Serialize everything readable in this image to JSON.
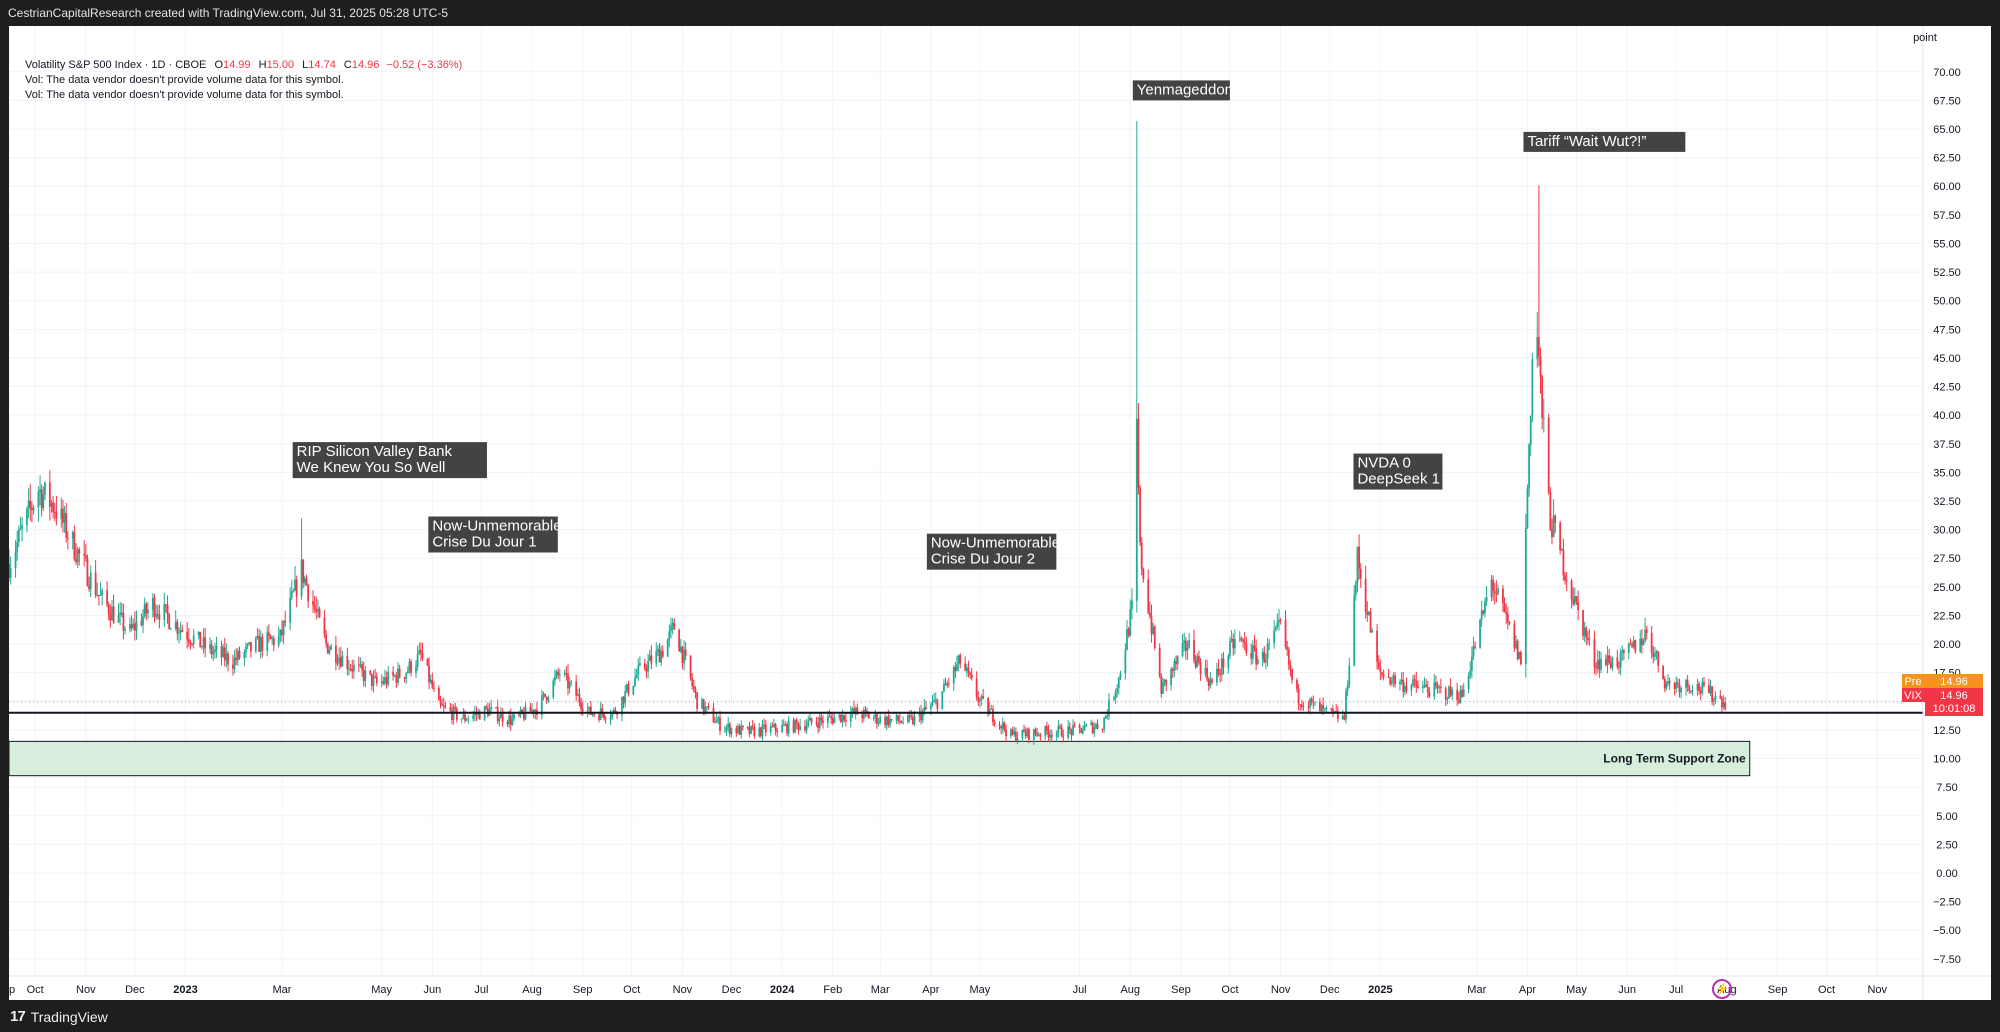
{
  "header": {
    "caption": "CestrianCapitalResearch created with TradingView.com, Jul 31, 2025 05:28 UTC-5"
  },
  "legend": {
    "symbol": "Volatility S&P 500 Index · 1D · CBOE",
    "open_label": "O",
    "open": "14.99",
    "high_label": "H",
    "high": "15.00",
    "low_label": "L",
    "low": "14.74",
    "close_label": "C",
    "close": "14.96",
    "change": "−0.52 (−3.36%)",
    "vol_note_1": "Vol: The data vendor doesn't provide volume data for this symbol.",
    "vol_note_2": "Vol: The data vendor doesn't provide volume data for this symbol."
  },
  "footer": {
    "brand": "TradingView",
    "logo_text": "17"
  },
  "price_scale": {
    "unit": "point",
    "pre_label": "Pre",
    "pre_value": "14.96",
    "last_label": "VIX",
    "last_value": "14.96",
    "countdown": "10:01:08"
  },
  "colors": {
    "up": "#22ab94",
    "down": "#f23645",
    "annotation_bg": "#434343",
    "zone_fill": "#d8eedd",
    "pre": "#f7931a"
  },
  "chart_data": {
    "type": "candlestick",
    "title": "Volatility S&P 500 Index · 1D · CBOE",
    "ylim": [
      -9,
      74
    ],
    "y_ticks": [
      70,
      67.5,
      65,
      62.5,
      60,
      57.5,
      55,
      52.5,
      50,
      47.5,
      45,
      42.5,
      40,
      37.5,
      35,
      32.5,
      30,
      27.5,
      25,
      22.5,
      20,
      17.5,
      15,
      12.5,
      10,
      7.5,
      5,
      2.5,
      0,
      -2.5,
      -5,
      -7.5
    ],
    "x_ticks": [
      {
        "label": "ep",
        "date": "2022-09-15"
      },
      {
        "label": "Oct",
        "date": "2022-10-01"
      },
      {
        "label": "Nov",
        "date": "2022-11-01"
      },
      {
        "label": "Dec",
        "date": "2022-12-01"
      },
      {
        "label": "2023",
        "date": "2023-01-01"
      },
      {
        "label": "Mar",
        "date": "2023-03-01"
      },
      {
        "label": "May",
        "date": "2023-05-01"
      },
      {
        "label": "Jun",
        "date": "2023-06-01"
      },
      {
        "label": "Jul",
        "date": "2023-07-01"
      },
      {
        "label": "Aug",
        "date": "2023-08-01"
      },
      {
        "label": "Sep",
        "date": "2023-09-01"
      },
      {
        "label": "Oct",
        "date": "2023-10-01"
      },
      {
        "label": "Nov",
        "date": "2023-11-01"
      },
      {
        "label": "Dec",
        "date": "2023-12-01"
      },
      {
        "label": "2024",
        "date": "2024-01-01"
      },
      {
        "label": "Feb",
        "date": "2024-02-01"
      },
      {
        "label": "Mar",
        "date": "2024-03-01"
      },
      {
        "label": "Apr",
        "date": "2024-04-01"
      },
      {
        "label": "May",
        "date": "2024-05-01"
      },
      {
        "label": "Jul",
        "date": "2024-07-01"
      },
      {
        "label": "Aug",
        "date": "2024-08-01"
      },
      {
        "label": "Sep",
        "date": "2024-09-01"
      },
      {
        "label": "Oct",
        "date": "2024-10-01"
      },
      {
        "label": "Nov",
        "date": "2024-11-01"
      },
      {
        "label": "Dec",
        "date": "2024-12-01"
      },
      {
        "label": "2025",
        "date": "2025-01-01"
      },
      {
        "label": "Mar",
        "date": "2025-03-01"
      },
      {
        "label": "Apr",
        "date": "2025-04-01"
      },
      {
        "label": "May",
        "date": "2025-05-01"
      },
      {
        "label": "Jun",
        "date": "2025-06-01"
      },
      {
        "label": "Jul",
        "date": "2025-07-01"
      },
      {
        "label": "Aug",
        "date": "2025-08-01"
      },
      {
        "label": "Sep",
        "date": "2025-09-01"
      },
      {
        "label": "Oct",
        "date": "2025-10-01"
      },
      {
        "label": "Nov",
        "date": "2025-11-01"
      }
    ],
    "x_range": [
      "2022-09-15",
      "2025-11-29"
    ],
    "series": [
      {
        "values": [
          [
            "2022-09-15",
            27
          ],
          [
            "2022-10-03",
            33.5
          ],
          [
            "2022-10-13",
            32
          ],
          [
            "2022-10-25",
            28.5
          ],
          [
            "2022-11-10",
            24
          ],
          [
            "2022-11-28",
            21
          ],
          [
            "2022-12-12",
            23.5
          ],
          [
            "2022-12-28",
            21.5
          ],
          [
            "2023-01-15",
            19.5
          ],
          [
            "2023-01-30",
            18.5
          ],
          [
            "2023-02-15",
            20
          ],
          [
            "2023-02-28",
            20.5
          ],
          [
            "2023-03-13",
            26.5
          ],
          [
            "2023-03-28",
            20
          ],
          [
            "2023-04-13",
            18
          ],
          [
            "2023-04-28",
            16.5
          ],
          [
            "2023-05-15",
            17.5
          ],
          [
            "2023-05-25",
            19
          ],
          [
            "2023-06-05",
            14.5
          ],
          [
            "2023-06-20",
            13.5
          ],
          [
            "2023-07-05",
            14.2
          ],
          [
            "2023-07-20",
            13.3
          ],
          [
            "2023-08-05",
            14.5
          ],
          [
            "2023-08-18",
            17.5
          ],
          [
            "2023-09-05",
            14
          ],
          [
            "2023-09-20",
            14
          ],
          [
            "2023-10-05",
            17.5
          ],
          [
            "2023-10-20",
            19.5
          ],
          [
            "2023-10-27",
            21.5
          ],
          [
            "2023-11-10",
            15
          ],
          [
            "2023-11-25",
            12.8
          ],
          [
            "2023-12-10",
            12.3
          ],
          [
            "2023-12-28",
            12.6
          ],
          [
            "2024-01-15",
            13
          ],
          [
            "2024-02-01",
            13.5
          ],
          [
            "2024-02-15",
            14
          ],
          [
            "2024-03-01",
            13.4
          ],
          [
            "2024-03-20",
            13.2
          ],
          [
            "2024-04-05",
            15
          ],
          [
            "2024-04-19",
            18.5
          ],
          [
            "2024-05-01",
            15
          ],
          [
            "2024-05-20",
            12
          ],
          [
            "2024-06-10",
            12.3
          ],
          [
            "2024-06-28",
            12.4
          ],
          [
            "2024-07-15",
            13
          ],
          [
            "2024-07-25",
            17
          ],
          [
            "2024-08-02",
            23
          ],
          [
            "2024-08-05",
            38.5
          ],
          [
            "2024-08-07",
            28
          ],
          [
            "2024-08-20",
            16
          ],
          [
            "2024-09-05",
            20
          ],
          [
            "2024-09-20",
            16.5
          ],
          [
            "2024-10-05",
            20.5
          ],
          [
            "2024-10-20",
            18.5
          ],
          [
            "2024-11-01",
            21.5
          ],
          [
            "2024-11-10",
            15.5
          ],
          [
            "2024-11-28",
            14
          ],
          [
            "2024-12-10",
            13.5
          ],
          [
            "2024-12-18",
            27.5
          ],
          [
            "2024-12-31",
            17.5
          ],
          [
            "2025-01-15",
            16.5
          ],
          [
            "2025-02-01",
            16
          ],
          [
            "2025-02-20",
            15.5
          ],
          [
            "2025-03-10",
            25.5
          ],
          [
            "2025-03-28",
            18.5
          ],
          [
            "2025-04-04",
            45
          ],
          [
            "2025-04-07",
            47
          ],
          [
            "2025-04-10",
            40
          ],
          [
            "2025-04-15",
            31
          ],
          [
            "2025-04-28",
            24.5
          ],
          [
            "2025-05-12",
            18.5
          ],
          [
            "2025-05-28",
            18.5
          ],
          [
            "2025-06-13",
            21
          ],
          [
            "2025-06-25",
            16.5
          ],
          [
            "2025-07-10",
            16.5
          ],
          [
            "2025-07-31",
            14.96
          ]
        ]
      }
    ],
    "annotations": [
      {
        "text": "RIP Silicon Valley Bank\nWe Knew You So Well",
        "date": "2023-03-10",
        "value": 34.5
      },
      {
        "text": "Now-Unmemorable\nCrise Du Jour 1",
        "date": "2023-06-01",
        "value": 28
      },
      {
        "text": "Now-Unmemorable\nCrise Du Jour 2",
        "date": "2024-04-01",
        "value": 26.5
      },
      {
        "text": "Yenmageddon",
        "date": "2024-08-05",
        "value": 67.5
      },
      {
        "text": "NVDA 0\nDeepSeek 1",
        "date": "2024-12-18",
        "value": 33.5
      },
      {
        "text": "Tariff “Wait Wut?!”",
        "date": "2025-04-01",
        "value": 63
      }
    ],
    "spikes": [
      {
        "date": "2023-03-13",
        "high": 31
      },
      {
        "date": "2024-08-05",
        "high": 65.7
      },
      {
        "date": "2024-12-18",
        "high": 28
      },
      {
        "date": "2025-04-08",
        "high": 60.1
      }
    ],
    "support_line": 14,
    "support_zone": {
      "label": "Long Term Support Zone",
      "low": 8.5,
      "high": 11.5,
      "start": "2022-09-15",
      "end": "2025-08-15"
    },
    "last_close": 14.96,
    "grid": true
  }
}
